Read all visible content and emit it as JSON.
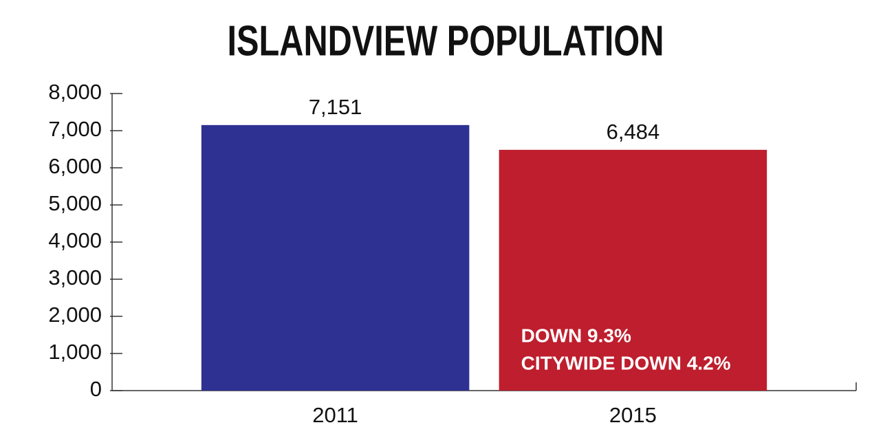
{
  "chart_data": {
    "type": "bar",
    "title": "ISLANDVIEW POPULATION",
    "categories": [
      "2011",
      "2015"
    ],
    "values": [
      7151,
      6484
    ],
    "value_labels": [
      "7,151",
      "6,484"
    ],
    "colors": [
      "#2e3192",
      "#be1e2d"
    ],
    "ylim": [
      0,
      8000
    ],
    "yticks": [
      0,
      {
        "value": 1000,
        "label": "1,000"
      },
      {
        "value": 2000,
        "label": "2,000"
      },
      {
        "value": 3000,
        "label": "3,000"
      },
      {
        "value": 4000,
        "label": "4,000"
      },
      {
        "value": 5000,
        "label": "5,000"
      },
      {
        "value": 6000,
        "label": "6,000"
      },
      {
        "value": 7000,
        "label": "7,000"
      },
      {
        "value": 8000,
        "label": "8,000"
      }
    ],
    "annotations": [
      "DOWN 9.3%",
      "CITYWIDE DOWN 4.2%"
    ],
    "grid": false
  }
}
